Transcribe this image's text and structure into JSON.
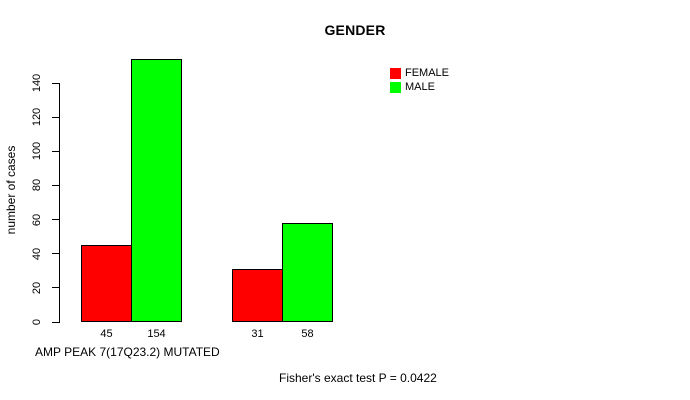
{
  "legend": {
    "items": [
      {
        "label": "FEMALE",
        "color": "#ff0000"
      },
      {
        "label": "MALE",
        "color": "#00ff00"
      }
    ]
  },
  "chart_data": {
    "type": "bar",
    "title": "GENDER",
    "xlabel": "",
    "ylabel": "number of cases",
    "ylim": [
      0,
      140
    ],
    "yticks": [
      0,
      20,
      40,
      60,
      80,
      100,
      120,
      140
    ],
    "categories": [
      "AMP PEAK 7(17Q23.2) MUTATED",
      ""
    ],
    "series": [
      {
        "name": "FEMALE",
        "color": "#ff0000",
        "values": [
          45,
          31
        ]
      },
      {
        "name": "MALE",
        "color": "#00ff00",
        "values": [
          154,
          58
        ]
      }
    ],
    "bar_value_labels": [
      "45",
      "154",
      "31",
      "58"
    ],
    "annotation": "Fisher's exact test P = 0.0422",
    "legend_position": "top-right",
    "grid": false,
    "background": "#ffffff"
  }
}
